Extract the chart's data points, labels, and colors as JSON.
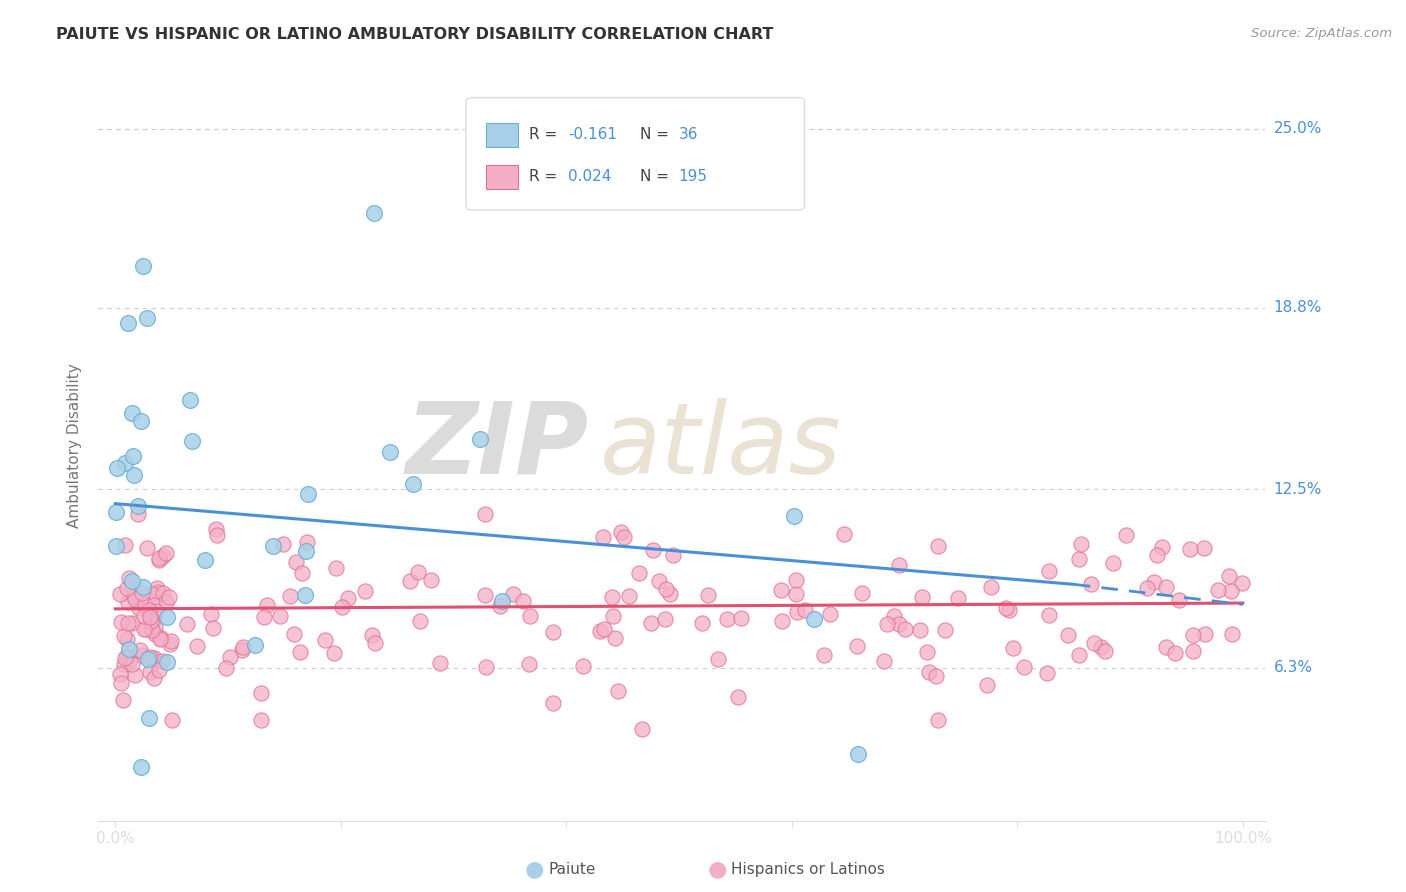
{
  "title": "PAIUTE VS HISPANIC OR LATINO AMBULATORY DISABILITY CORRELATION CHART",
  "source": "Source: ZipAtlas.com",
  "ylabel": "Ambulatory Disability",
  "xlim": [
    0.0,
    100.0
  ],
  "ylim": [
    1.0,
    27.0
  ],
  "yticks": [
    6.3,
    12.5,
    18.8,
    25.0
  ],
  "ytick_labels": [
    "6.3%",
    "12.5%",
    "18.8%",
    "25.0%"
  ],
  "paiute_color": "#a8d0e8",
  "paiute_edge_color": "#6aaed6",
  "hispanic_color": "#f4afc8",
  "hispanic_edge_color": "#e07090",
  "paiute_line_color": "#4a90d9",
  "hispanic_line_color": "#e05070",
  "paiute_line_start_y": 12.0,
  "paiute_line_end_y": 9.2,
  "paiute_line_dash_end_y": 8.5,
  "hispanic_line_start_y": 8.35,
  "hispanic_line_end_y": 8.55,
  "legend_text_1": "R = -0.161   N =  36",
  "legend_text_2": "R = 0.024   N = 195",
  "label_paiute": "Paiute",
  "label_hispanic": "Hispanics or Latinos",
  "watermark_zip": "ZIP",
  "watermark_atlas": "atlas",
  "grid_color": "#cccccc",
  "title_color": "#333333",
  "source_color": "#999999",
  "ylabel_color": "#777777",
  "ytick_label_color": "#4a90d9",
  "xtick_label_color": "#999999",
  "legend_border_color": "#dddddd"
}
